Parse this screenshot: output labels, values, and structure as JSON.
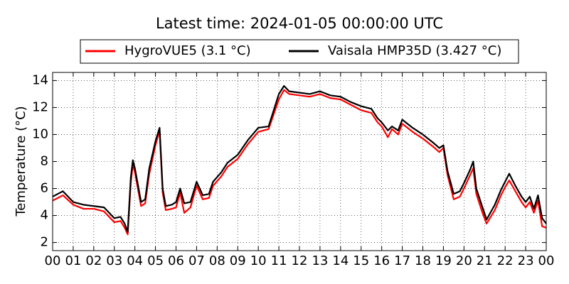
{
  "chart_data": {
    "type": "line",
    "title": "Latest time: 2024-01-05 00:00:00 UTC",
    "y_label": "Temperature (°C)",
    "x": [
      0,
      0.5,
      1,
      1.5,
      2,
      2.5,
      3,
      3.3,
      3.5,
      3.65,
      3.8,
      3.9,
      4,
      4.3,
      4.5,
      4.7,
      5,
      5.2,
      5.35,
      5.5,
      5.8,
      6,
      6.2,
      6.4,
      6.7,
      7,
      7.3,
      7.6,
      7.8,
      8.2,
      8.5,
      9,
      9.5,
      10,
      10.5,
      11,
      11.25,
      11.5,
      12,
      12.5,
      13,
      13.5,
      14,
      14.5,
      15,
      15.5,
      15.8,
      16,
      16.3,
      16.5,
      16.8,
      17,
      17.5,
      18,
      18.5,
      18.8,
      19,
      19.2,
      19.5,
      19.8,
      20,
      20.3,
      20.45,
      20.6,
      20.9,
      21.1,
      21.5,
      21.8,
      22,
      22.2,
      22.5,
      22.8,
      23,
      23.2,
      23.4,
      23.6,
      23.8,
      24
    ],
    "series": [
      {
        "name": "HygroVUE5 (3.1 °C)",
        "color": "#ff0000",
        "values": [
          5.1,
          5.5,
          4.8,
          4.5,
          4.5,
          4.3,
          3.5,
          3.6,
          3.1,
          2.6,
          6.4,
          7.8,
          7.2,
          4.7,
          4.9,
          7.1,
          9.2,
          10.3,
          5.7,
          4.4,
          4.5,
          4.6,
          5.7,
          4.2,
          4.6,
          6.2,
          5.2,
          5.3,
          6.2,
          6.9,
          7.6,
          8.2,
          9.3,
          10.2,
          10.4,
          12.6,
          13.3,
          13.0,
          12.9,
          12.8,
          13.0,
          12.7,
          12.6,
          12.2,
          11.8,
          11.6,
          10.9,
          10.6,
          9.8,
          10.4,
          10.0,
          10.8,
          10.2,
          9.7,
          9.1,
          8.7,
          9.0,
          7.0,
          5.2,
          5.4,
          6.0,
          7.0,
          7.5,
          5.6,
          4.2,
          3.4,
          4.4,
          5.5,
          6.1,
          6.6,
          5.8,
          5.0,
          4.6,
          5.0,
          4.2,
          5.1,
          3.2,
          3.1
        ]
      },
      {
        "name": "Vaisala HMP35D (3.427 °C)",
        "color": "#000000",
        "values": [
          5.4,
          5.8,
          5.0,
          4.8,
          4.7,
          4.6,
          3.8,
          3.9,
          3.4,
          2.8,
          6.8,
          8.1,
          7.5,
          5.0,
          5.2,
          7.5,
          9.5,
          10.5,
          6.0,
          4.7,
          4.8,
          5.0,
          6.0,
          4.9,
          5.0,
          6.5,
          5.5,
          5.6,
          6.5,
          7.2,
          7.9,
          8.5,
          9.6,
          10.5,
          10.6,
          13.0,
          13.6,
          13.2,
          13.1,
          13.0,
          13.2,
          12.9,
          12.8,
          12.4,
          12.1,
          11.9,
          11.2,
          10.9,
          10.3,
          10.6,
          10.3,
          11.1,
          10.5,
          10.0,
          9.4,
          9.0,
          9.2,
          7.3,
          5.6,
          5.8,
          6.4,
          7.4,
          8.0,
          6.0,
          4.6,
          3.7,
          4.8,
          5.9,
          6.5,
          7.1,
          6.2,
          5.4,
          5.0,
          5.4,
          4.5,
          5.5,
          3.8,
          3.4
        ]
      }
    ],
    "xlim": [
      0,
      24
    ],
    "xticks": [
      {
        "value": 0,
        "label": "00"
      },
      {
        "value": 1,
        "label": "01"
      },
      {
        "value": 2,
        "label": "02"
      },
      {
        "value": 3,
        "label": "03"
      },
      {
        "value": 4,
        "label": "04"
      },
      {
        "value": 5,
        "label": "05"
      },
      {
        "value": 6,
        "label": "06"
      },
      {
        "value": 7,
        "label": "07"
      },
      {
        "value": 8,
        "label": "08"
      },
      {
        "value": 9,
        "label": "09"
      },
      {
        "value": 10,
        "label": "10"
      },
      {
        "value": 11,
        "label": "11"
      },
      {
        "value": 12,
        "label": "12"
      },
      {
        "value": 13,
        "label": "13"
      },
      {
        "value": 14,
        "label": "14"
      },
      {
        "value": 15,
        "label": "15"
      },
      {
        "value": 16,
        "label": "16"
      },
      {
        "value": 17,
        "label": "17"
      },
      {
        "value": 18,
        "label": "18"
      },
      {
        "value": 19,
        "label": "19"
      },
      {
        "value": 20,
        "label": "20"
      },
      {
        "value": 21,
        "label": "21"
      },
      {
        "value": 22,
        "label": "22"
      },
      {
        "value": 23,
        "label": "23"
      },
      {
        "value": 24,
        "label": "00"
      }
    ],
    "ylim": [
      1.4,
      14.6
    ],
    "yticks": [
      2,
      4,
      6,
      8,
      10,
      12,
      14
    ],
    "grid": true,
    "legend": "top"
  }
}
